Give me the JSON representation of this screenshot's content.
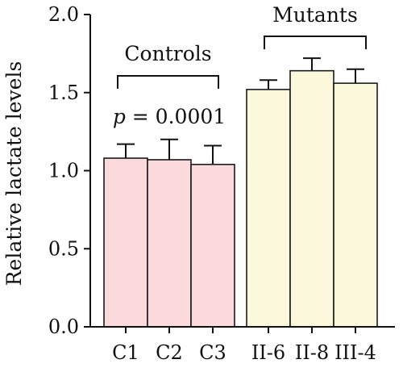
{
  "chart_data": {
    "type": "bar",
    "categories": [
      "C1",
      "C2",
      "C3",
      "II-6",
      "II-8",
      "III-4"
    ],
    "values": [
      1.08,
      1.07,
      1.04,
      1.52,
      1.64,
      1.56
    ],
    "error_upper": [
      1.17,
      1.2,
      1.16,
      1.58,
      1.72,
      1.65
    ],
    "groups": [
      {
        "label": "Controls",
        "bar_range": [
          0,
          2
        ]
      },
      {
        "label": "Mutants",
        "bar_range": [
          3,
          5
        ]
      }
    ],
    "colors": {
      "controls_fill": "#fadadd",
      "mutants_fill": "#fcf8dc",
      "stroke": "#1a1a1a"
    },
    "ylabel": "Relative lactate levels",
    "xlabel": "",
    "ylim": [
      0,
      2
    ],
    "yticks": [
      "0.0",
      "0.5",
      "1.0",
      "1.5",
      "2.0"
    ],
    "annotation": {
      "p_symbol": "p",
      "p_value": " = 0.0001"
    },
    "grid": false
  }
}
